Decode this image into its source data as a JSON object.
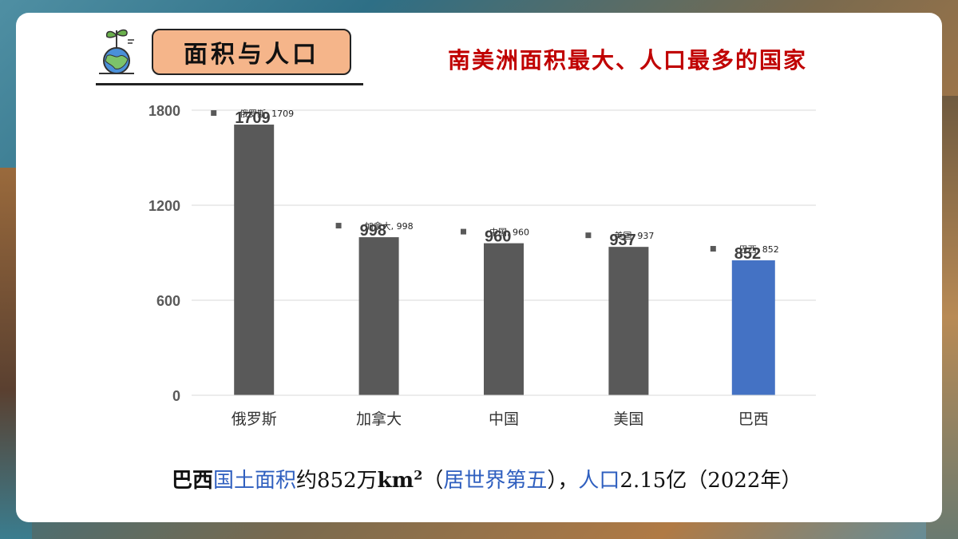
{
  "header": {
    "title": "面积与人口",
    "subtitle": "南美洲面积最大、人口最多的国家"
  },
  "icons": {
    "logo": "globe-sprout-icon"
  },
  "colors": {
    "default_bar": "#595959",
    "highlight_bar": "#4472c4",
    "subtitle": "#c00000",
    "accent_text": "#2f5fbf"
  },
  "chart_data": {
    "type": "bar",
    "categories": [
      "俄罗斯",
      "加拿大",
      "中国",
      "美国",
      "巴西"
    ],
    "values": [
      1709,
      998,
      960,
      937,
      852
    ],
    "value_labels": [
      "1709",
      "998",
      "960",
      "937",
      "852"
    ],
    "legend_labels": [
      "俄罗斯, 1709",
      "加拿大, 998",
      "中国, 960",
      "美国, 937",
      "巴西, 852"
    ],
    "highlight_category": "巴西",
    "yticks": [
      "0",
      "600",
      "1200",
      "1800"
    ],
    "ylim": [
      0,
      1800
    ],
    "grid": true
  },
  "caption": {
    "part1": "巴西",
    "part2": "国土面积",
    "part3": "约852万",
    "part4": "km",
    "part5": "2",
    "part6": "（",
    "part7": "居世界第五",
    "part8": "），",
    "part9": "人口",
    "part10": "2.15亿（2022年）"
  }
}
